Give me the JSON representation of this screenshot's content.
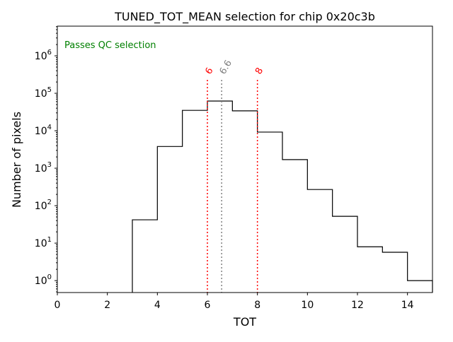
{
  "chart_data": {
    "type": "histogram-step",
    "title": "TUNED_TOT_MEAN selection for chip 0x20c3b",
    "xlabel": "TOT",
    "ylabel": "Number of pixels",
    "yscale": "log",
    "xlim": [
      0,
      15
    ],
    "ylim": [
      0.48,
      6200000
    ],
    "xticks": [
      0,
      2,
      4,
      6,
      8,
      10,
      12,
      14
    ],
    "yticks": [
      {
        "v": 1,
        "label": "10^0"
      },
      {
        "v": 10,
        "label": "10^1"
      },
      {
        "v": 100,
        "label": "10^2"
      },
      {
        "v": 1000,
        "label": "10^3"
      },
      {
        "v": 10000,
        "label": "10^4"
      },
      {
        "v": 100000,
        "label": "10^5"
      },
      {
        "v": 1000000,
        "label": "10^6"
      }
    ],
    "bin_edges": [
      3,
      4,
      5,
      6,
      7,
      8,
      9,
      10,
      11,
      12,
      13,
      14,
      15
    ],
    "counts": [
      42,
      3800,
      35000,
      62000,
      34000,
      9200,
      1700,
      270,
      52,
      8,
      5.7,
      1
    ],
    "vlines": [
      {
        "x": 6,
        "label": "6",
        "color": "#ff0000"
      },
      {
        "x": 6.57,
        "label": "6.6",
        "color": "#808080"
      },
      {
        "x": 8,
        "label": "8",
        "color": "#ff0000"
      }
    ],
    "annotation": {
      "text": "Passes QC selection",
      "color": "#008000"
    }
  }
}
